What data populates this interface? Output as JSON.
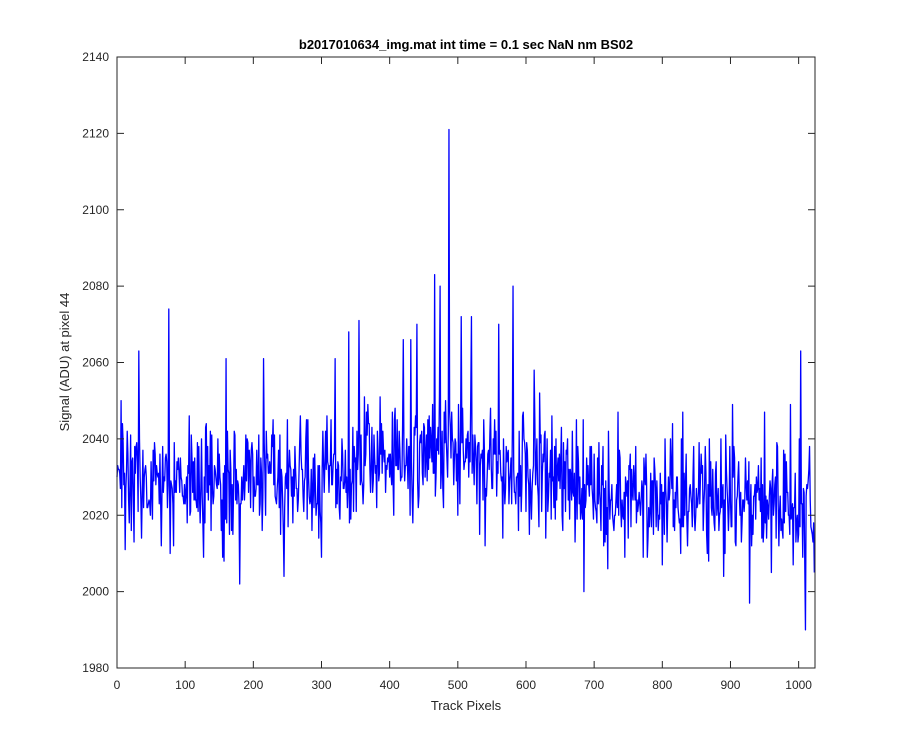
{
  "chart_data": {
    "type": "line",
    "title": "b2017010634_img.mat int time = 0.1 sec  NaN nm BS02",
    "xlabel": "Track Pixels",
    "ylabel": "Signal (ADU) at pixel 44",
    "xlim": [
      0,
      1024
    ],
    "ylim": [
      1980,
      2140
    ],
    "xticks": [
      0,
      100,
      200,
      300,
      400,
      500,
      600,
      700,
      800,
      900,
      1000
    ],
    "yticks": [
      1980,
      2000,
      2020,
      2040,
      2060,
      2080,
      2100,
      2120,
      2140
    ],
    "grid": false,
    "box": true,
    "series": [
      {
        "color": "#0000ff",
        "n_points": 1024,
        "baseline": [
          [
            0,
            2030
          ],
          [
            150,
            2029
          ],
          [
            300,
            2031
          ],
          [
            400,
            2035
          ],
          [
            470,
            2037
          ],
          [
            560,
            2033
          ],
          [
            650,
            2028
          ],
          [
            760,
            2024
          ],
          [
            900,
            2024
          ],
          [
            1023,
            2022
          ]
        ],
        "noise_sd": 7.5,
        "peaks": [
          {
            "x": 8,
            "y": 2044
          },
          {
            "x": 32,
            "y": 2063
          },
          {
            "x": 76,
            "y": 2074
          },
          {
            "x": 160,
            "y": 2061
          },
          {
            "x": 215,
            "y": 2061
          },
          {
            "x": 320,
            "y": 2061
          },
          {
            "x": 340,
            "y": 2068
          },
          {
            "x": 355,
            "y": 2071
          },
          {
            "x": 420,
            "y": 2066
          },
          {
            "x": 431,
            "y": 2066
          },
          {
            "x": 440,
            "y": 2070
          },
          {
            "x": 466,
            "y": 2083
          },
          {
            "x": 474,
            "y": 2080
          },
          {
            "x": 487,
            "y": 2121
          },
          {
            "x": 505,
            "y": 2072
          },
          {
            "x": 520,
            "y": 2072
          },
          {
            "x": 560,
            "y": 2070
          },
          {
            "x": 581,
            "y": 2080
          },
          {
            "x": 612,
            "y": 2058
          },
          {
            "x": 735,
            "y": 2047
          },
          {
            "x": 830,
            "y": 2047
          },
          {
            "x": 903,
            "y": 2049
          },
          {
            "x": 950,
            "y": 2047
          },
          {
            "x": 988,
            "y": 2049
          },
          {
            "x": 1003,
            "y": 2063
          }
        ],
        "troughs": [
          {
            "x": 25,
            "y": 2013
          },
          {
            "x": 78,
            "y": 2010
          },
          {
            "x": 155,
            "y": 2009
          },
          {
            "x": 180,
            "y": 2002
          },
          {
            "x": 245,
            "y": 2004
          },
          {
            "x": 300,
            "y": 2009
          },
          {
            "x": 540,
            "y": 2012
          },
          {
            "x": 685,
            "y": 2000
          },
          {
            "x": 720,
            "y": 2006
          },
          {
            "x": 800,
            "y": 2007
          },
          {
            "x": 868,
            "y": 2008
          },
          {
            "x": 928,
            "y": 1997
          },
          {
            "x": 960,
            "y": 2005
          },
          {
            "x": 1010,
            "y": 1990
          },
          {
            "x": 1023,
            "y": 2005
          }
        ]
      }
    ]
  }
}
